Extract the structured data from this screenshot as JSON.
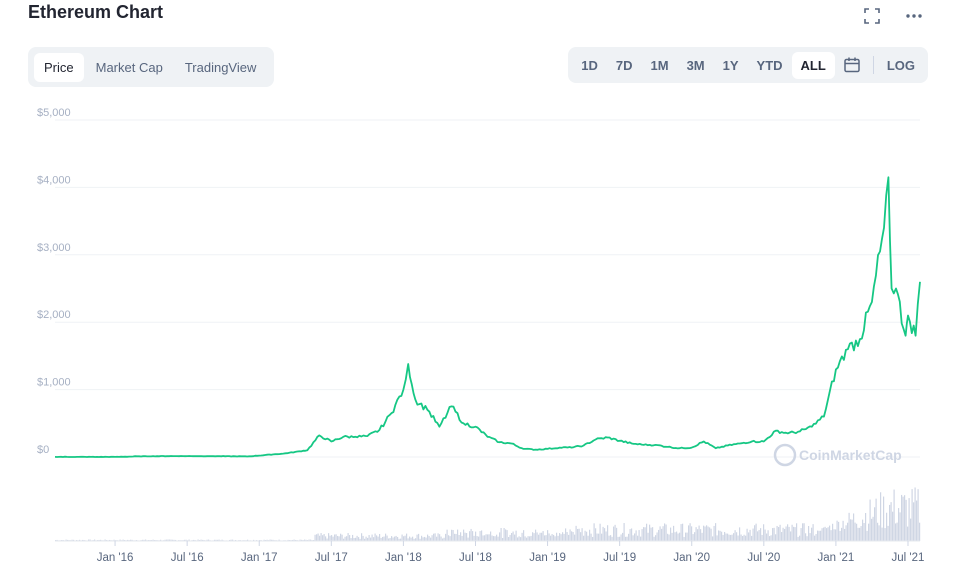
{
  "header": {
    "title": "Ethereum Chart"
  },
  "tabs": [
    {
      "label": "Price",
      "active": true
    },
    {
      "label": "Market Cap",
      "active": false
    },
    {
      "label": "TradingView",
      "active": false
    }
  ],
  "ranges": [
    "1D",
    "7D",
    "1M",
    "3M",
    "1Y",
    "YTD",
    "ALL"
  ],
  "active_range": "ALL",
  "log_label": "LOG",
  "watermark": "CoinMarketCap",
  "colors": {
    "line": "#16c784",
    "grid": "#eff2f5",
    "volume": "#cfd6e4"
  },
  "chart_data": {
    "type": "line",
    "title": "Ethereum Chart",
    "xlabel": "",
    "ylabel": "",
    "ylim": [
      0,
      5000
    ],
    "y_ticks": [
      "$0",
      "$1,000",
      "$2,000",
      "$3,000",
      "$4,000",
      "$5,000"
    ],
    "x_ticks": [
      "Jan '16",
      "Jul '16",
      "Jan '17",
      "Jul '17",
      "Jan '18",
      "Jul '18",
      "Jan '19",
      "Jul '19",
      "Jan '20",
      "Jul '20",
      "Jan '21",
      "Jul '21"
    ],
    "grid": true,
    "series": [
      {
        "x": [
          "2015-08",
          "2015-10",
          "2016-01",
          "2016-03",
          "2016-06",
          "2016-09",
          "2016-12",
          "2017-03",
          "2017-05",
          "2017-06",
          "2017-07",
          "2017-08",
          "2017-09",
          "2017-10",
          "2017-11",
          "2017-12",
          "2018-01",
          "2018-01-13",
          "2018-02",
          "2018-03",
          "2018-04",
          "2018-05",
          "2018-06",
          "2018-07",
          "2018-08",
          "2018-09",
          "2018-10",
          "2018-11",
          "2018-12",
          "2019-01",
          "2019-02",
          "2019-03",
          "2019-04",
          "2019-05",
          "2019-06",
          "2019-07",
          "2019-08",
          "2019-09",
          "2019-10",
          "2019-11",
          "2019-12",
          "2020-01",
          "2020-02",
          "2020-03",
          "2020-04",
          "2020-05",
          "2020-06",
          "2020-07",
          "2020-08",
          "2020-09",
          "2020-10",
          "2020-11",
          "2020-12",
          "2021-01",
          "2021-02",
          "2021-03",
          "2021-04",
          "2021-05",
          "2021-05-12",
          "2021-05-20",
          "2021-06",
          "2021-06-25",
          "2021-07",
          "2021-07-20",
          "2021-08"
        ],
        "values": [
          2,
          1,
          1,
          10,
          14,
          13,
          8,
          50,
          100,
          320,
          230,
          300,
          300,
          310,
          400,
          650,
          1000,
          1380,
          850,
          700,
          450,
          750,
          500,
          450,
          300,
          220,
          200,
          120,
          110,
          120,
          140,
          140,
          170,
          260,
          290,
          240,
          200,
          180,
          180,
          150,
          130,
          140,
          230,
          130,
          170,
          200,
          230,
          230,
          390,
          350,
          380,
          450,
          600,
          1300,
          1600,
          1750,
          2300,
          3400,
          4150,
          2500,
          2500,
          1800,
          2100,
          1800,
          2600
        ]
      }
    ],
    "volume_note": "trading volume histogram below price line"
  }
}
